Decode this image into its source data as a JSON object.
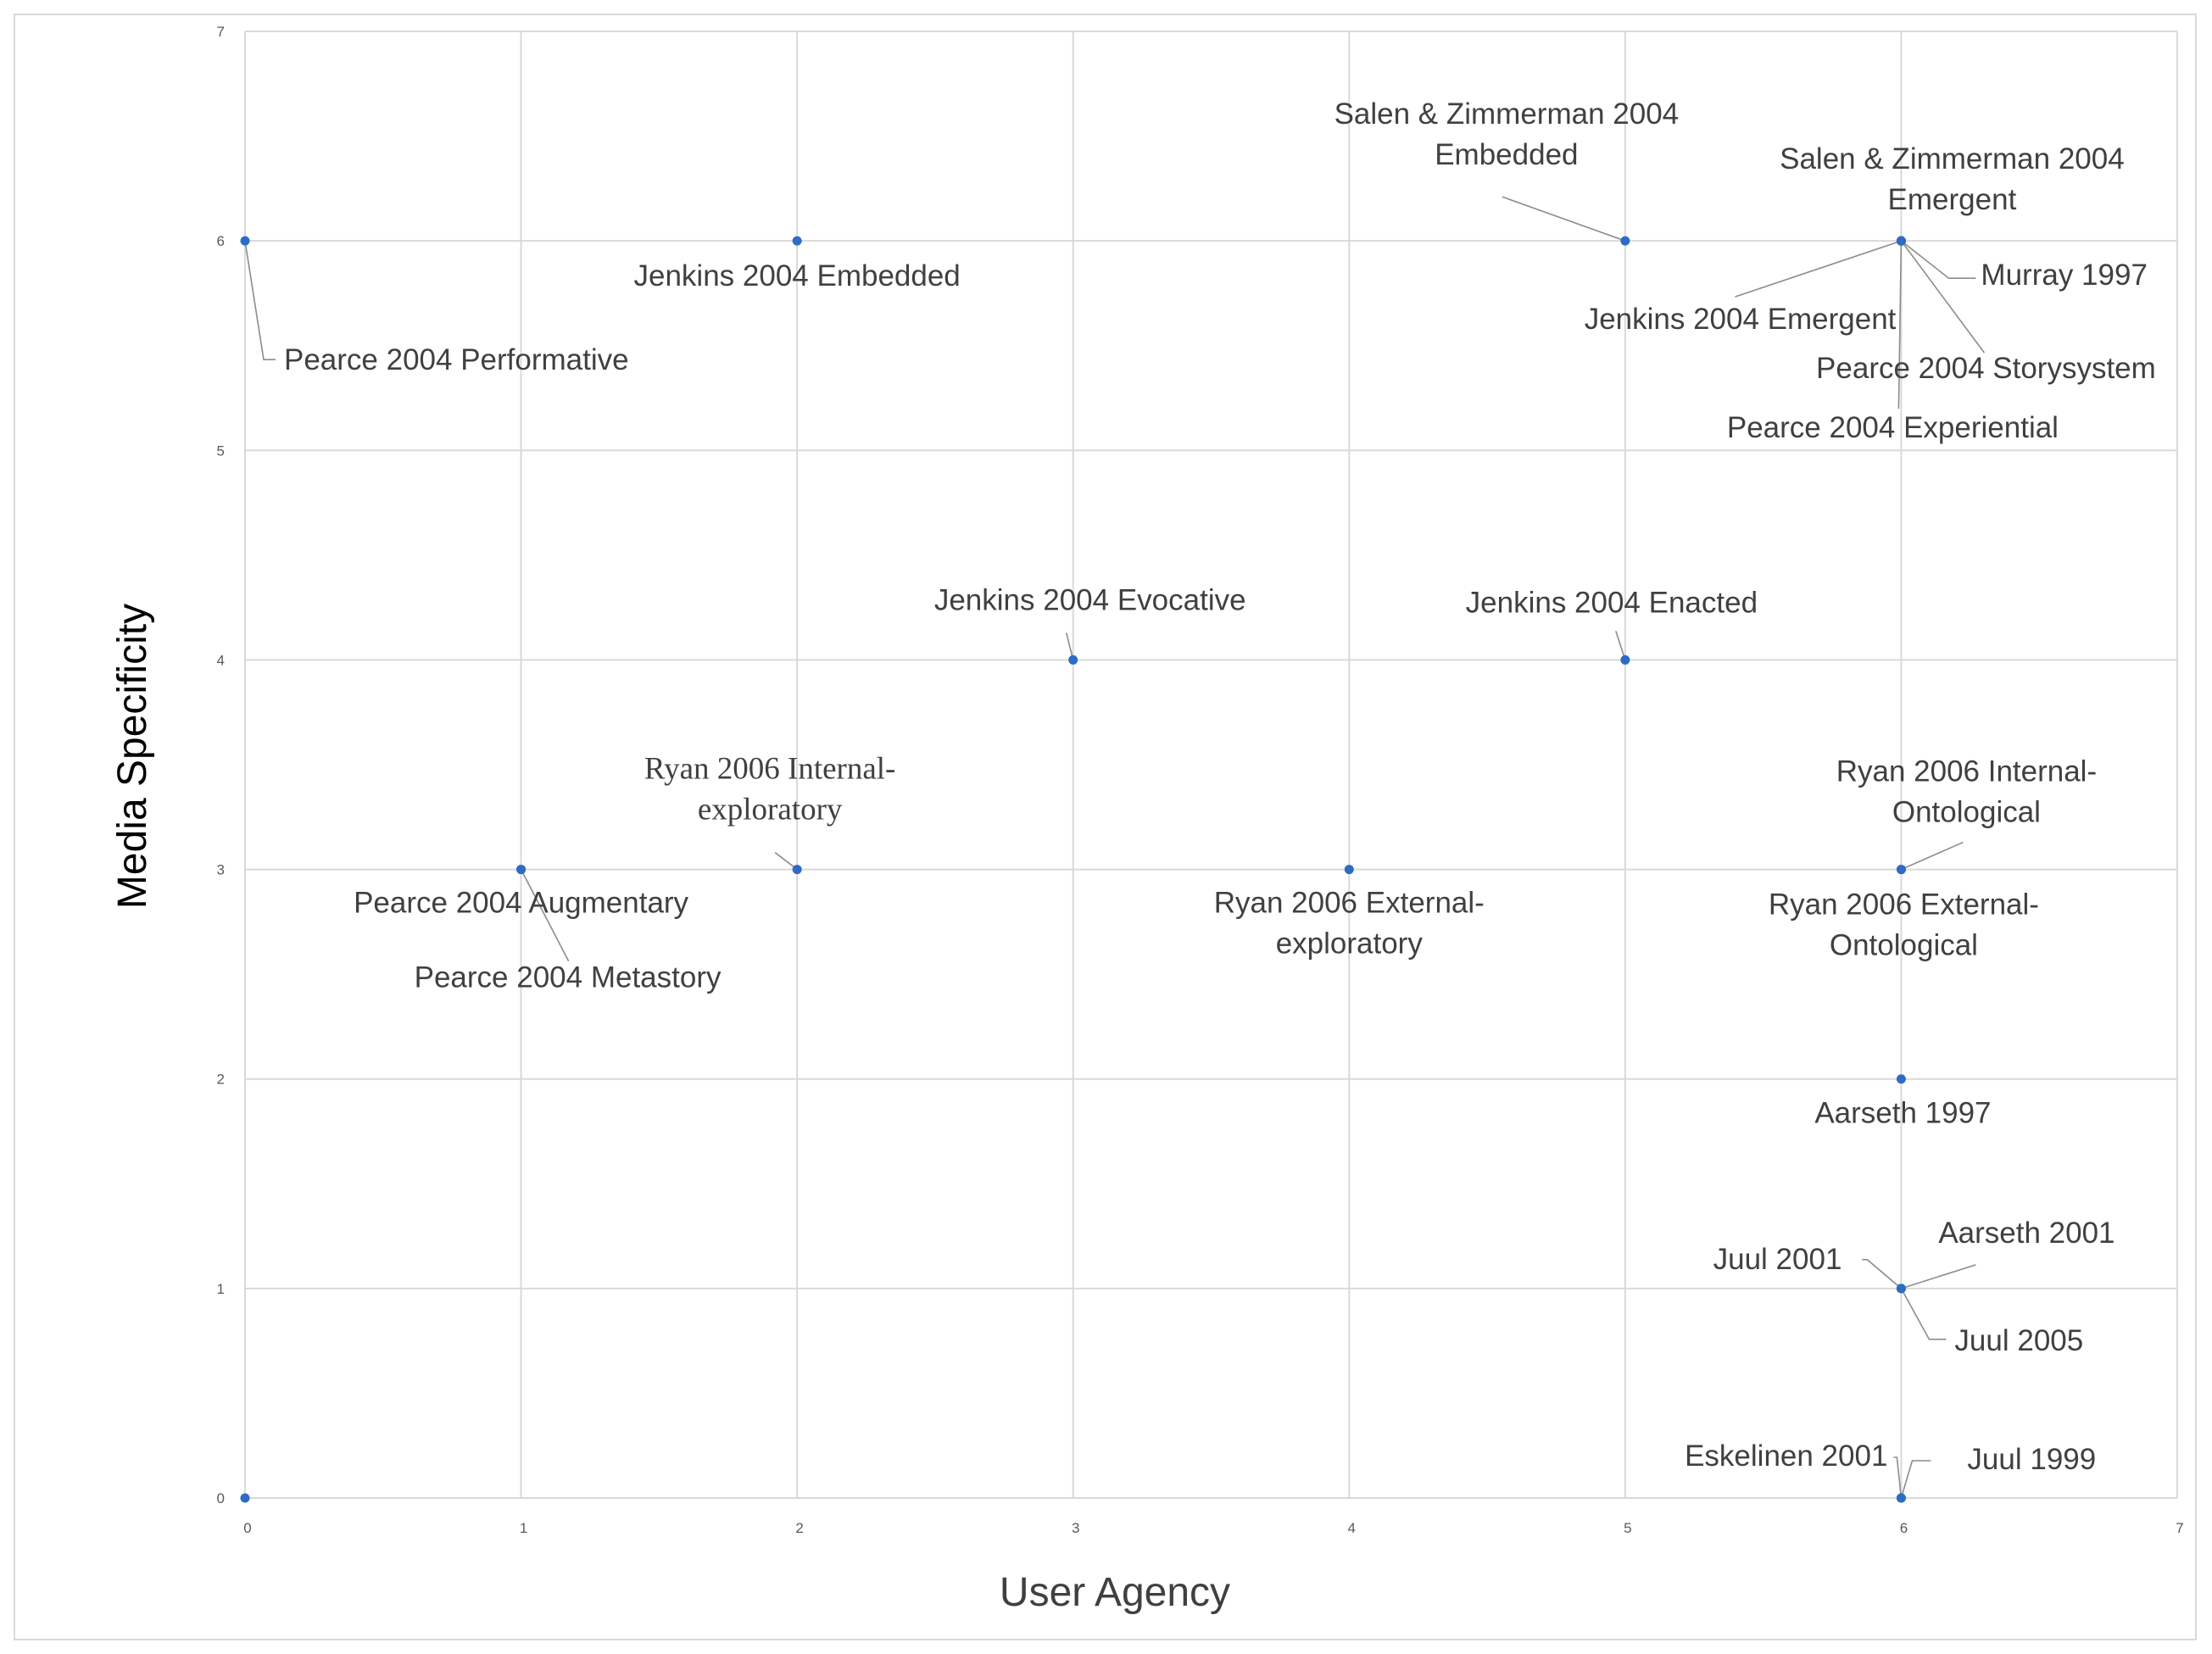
{
  "chart_data": {
    "type": "scatter",
    "xlabel": "User Agency",
    "ylabel": "Media Specificity",
    "xlim": [
      0,
      7
    ],
    "ylim": [
      0,
      7
    ],
    "x_ticks": [
      "0",
      "1",
      "2",
      "3",
      "4",
      "5",
      "6",
      "7"
    ],
    "y_ticks": [
      "0",
      "1",
      "2",
      "3",
      "4",
      "5",
      "6",
      "7"
    ],
    "grid": true,
    "marker_color": "#2e6bc4",
    "points": [
      {
        "x": 0,
        "y": 6,
        "label": "Pearce 2004 Performative"
      },
      {
        "x": 0,
        "y": 0,
        "label": ""
      },
      {
        "x": 2,
        "y": 6,
        "label": "Jenkins 2004 Embedded"
      },
      {
        "x": 5,
        "y": 6,
        "label": "Salen & Zimmerman 2004\nEmbedded"
      },
      {
        "x": 6,
        "y": 6,
        "label": "Salen & Zimmerman 2004\nEmergent"
      },
      {
        "x": 6,
        "y": 6,
        "label": "Murray 1997"
      },
      {
        "x": 6,
        "y": 6,
        "label": "Jenkins 2004 Emergent"
      },
      {
        "x": 6,
        "y": 6,
        "label": "Pearce 2004 Storysystem"
      },
      {
        "x": 6,
        "y": 6,
        "label": "Pearce 2004 Experiential"
      },
      {
        "x": 3,
        "y": 4,
        "label": "Jenkins 2004 Evocative"
      },
      {
        "x": 5,
        "y": 4,
        "label": "Jenkins 2004 Enacted"
      },
      {
        "x": 1,
        "y": 3,
        "label": "Pearce 2004 Augmentary"
      },
      {
        "x": 1,
        "y": 3,
        "label": "Pearce 2004 Metastory"
      },
      {
        "x": 2,
        "y": 3,
        "label": "Ryan 2006 Internal-\nexploratory"
      },
      {
        "x": 4,
        "y": 3,
        "label": "Ryan 2006 External-\nexploratory"
      },
      {
        "x": 6,
        "y": 3,
        "label": "Ryan 2006 Internal-\nOntological"
      },
      {
        "x": 6,
        "y": 3,
        "label": "Ryan 2006 External-\nOntological"
      },
      {
        "x": 6,
        "y": 2,
        "label": "Aarseth 1997"
      },
      {
        "x": 6,
        "y": 1,
        "label": "Juul 2001"
      },
      {
        "x": 6,
        "y": 1,
        "label": "Aarseth 2001"
      },
      {
        "x": 6,
        "y": 1,
        "label": "Juul 2005"
      },
      {
        "x": 6,
        "y": 0,
        "label": "Eskelinen 2001"
      },
      {
        "x": 6,
        "y": 0,
        "label": "Juul 1999"
      }
    ]
  }
}
